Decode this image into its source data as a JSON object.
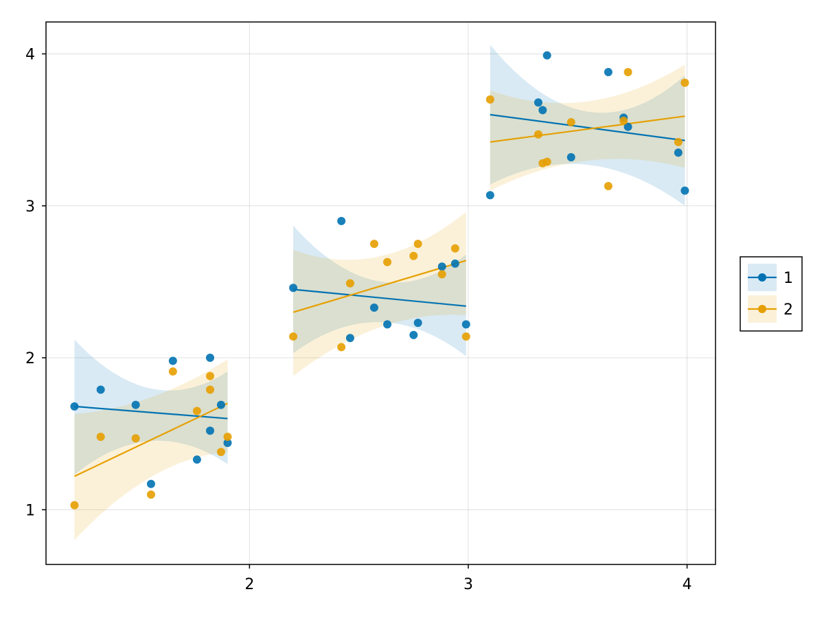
{
  "chart_data": {
    "type": "scatter",
    "title": "",
    "xlabel": "",
    "ylabel": "",
    "xlim": [
      1.07,
      4.13
    ],
    "ylim": [
      0.64,
      4.21
    ],
    "xticks": [
      2,
      3,
      4
    ],
    "yticks": [
      1,
      2,
      3,
      4
    ],
    "grid": true,
    "legend_position": "right",
    "colors": {
      "1": "#0072b2",
      "2": "#e69f00"
    },
    "series": [
      {
        "name": "1",
        "color": "#0072b2",
        "points": [
          [
            1.2,
            1.68
          ],
          [
            1.32,
            1.79
          ],
          [
            1.48,
            1.69
          ],
          [
            1.55,
            1.17
          ],
          [
            1.65,
            1.98
          ],
          [
            1.76,
            1.33
          ],
          [
            1.82,
            2.0
          ],
          [
            1.82,
            1.52
          ],
          [
            1.87,
            1.69
          ],
          [
            1.9,
            1.44
          ],
          [
            2.2,
            2.46
          ],
          [
            2.42,
            2.9
          ],
          [
            2.46,
            2.13
          ],
          [
            2.57,
            2.33
          ],
          [
            2.63,
            2.22
          ],
          [
            2.75,
            2.15
          ],
          [
            2.77,
            2.23
          ],
          [
            2.88,
            2.6
          ],
          [
            2.94,
            2.62
          ],
          [
            2.99,
            2.22
          ],
          [
            3.1,
            3.07
          ],
          [
            3.32,
            3.68
          ],
          [
            3.34,
            3.63
          ],
          [
            3.36,
            3.99
          ],
          [
            3.47,
            3.32
          ],
          [
            3.64,
            3.88
          ],
          [
            3.71,
            3.58
          ],
          [
            3.73,
            3.52
          ],
          [
            3.96,
            3.35
          ],
          [
            3.99,
            3.1
          ]
        ],
        "fits": [
          {
            "x0": 1.2,
            "y0": 1.68,
            "x1": 1.9,
            "y1": 1.6,
            "band_lower": [
              1.23,
              1.3
            ],
            "band_mid": [
              1.64,
              1.58
            ],
            "band_upper": [
              2.12,
              1.91
            ]
          },
          {
            "x0": 2.2,
            "y0": 2.45,
            "x1": 2.99,
            "y1": 2.34,
            "band_lower": [
              2.03,
              2.01
            ],
            "band_mid": [
              2.45,
              2.23
            ],
            "band_upper": [
              2.87,
              2.68
            ]
          },
          {
            "x0": 3.1,
            "y0": 3.6,
            "x1": 3.99,
            "y1": 3.43,
            "band_lower": [
              3.14,
              3.0
            ],
            "band_mid": [
              3.47,
              3.28
            ],
            "band_upper": [
              4.06,
              3.86
            ]
          }
        ]
      },
      {
        "name": "2",
        "color": "#e69f00",
        "points": [
          [
            1.2,
            1.03
          ],
          [
            1.32,
            1.48
          ],
          [
            1.48,
            1.47
          ],
          [
            1.55,
            1.1
          ],
          [
            1.65,
            1.91
          ],
          [
            1.76,
            1.65
          ],
          [
            1.82,
            1.88
          ],
          [
            1.82,
            1.79
          ],
          [
            1.87,
            1.38
          ],
          [
            1.9,
            1.48
          ],
          [
            2.2,
            2.14
          ],
          [
            2.42,
            2.07
          ],
          [
            2.46,
            2.49
          ],
          [
            2.57,
            2.75
          ],
          [
            2.63,
            2.63
          ],
          [
            2.75,
            2.67
          ],
          [
            2.77,
            2.75
          ],
          [
            2.88,
            2.55
          ],
          [
            2.94,
            2.72
          ],
          [
            2.99,
            2.14
          ],
          [
            3.1,
            3.7
          ],
          [
            3.32,
            3.47
          ],
          [
            3.34,
            3.28
          ],
          [
            3.36,
            3.29
          ],
          [
            3.47,
            3.55
          ],
          [
            3.64,
            3.13
          ],
          [
            3.71,
            3.56
          ],
          [
            3.73,
            3.88
          ],
          [
            3.96,
            3.42
          ],
          [
            3.99,
            3.81
          ]
        ],
        "fits": [
          {
            "x0": 1.2,
            "y0": 1.22,
            "x1": 1.9,
            "y1": 1.7,
            "band_lower": [
              0.8,
              1.38
            ],
            "band_mid": [
              1.34,
              1.67
            ],
            "band_upper": [
              1.63,
              1.99
            ]
          },
          {
            "x0": 2.2,
            "y0": 2.3,
            "x1": 2.99,
            "y1": 2.64,
            "band_lower": [
              1.88,
              2.28
            ],
            "band_mid": [
              2.32,
              2.5
            ],
            "band_upper": [
              2.71,
              2.96
            ]
          },
          {
            "x0": 3.1,
            "y0": 3.42,
            "x1": 3.99,
            "y1": 3.59,
            "band_lower": [
              3.1,
              3.25
            ],
            "band_mid": [
              3.42,
              3.53
            ],
            "band_upper": [
              3.76,
              3.93
            ]
          }
        ]
      }
    ]
  }
}
